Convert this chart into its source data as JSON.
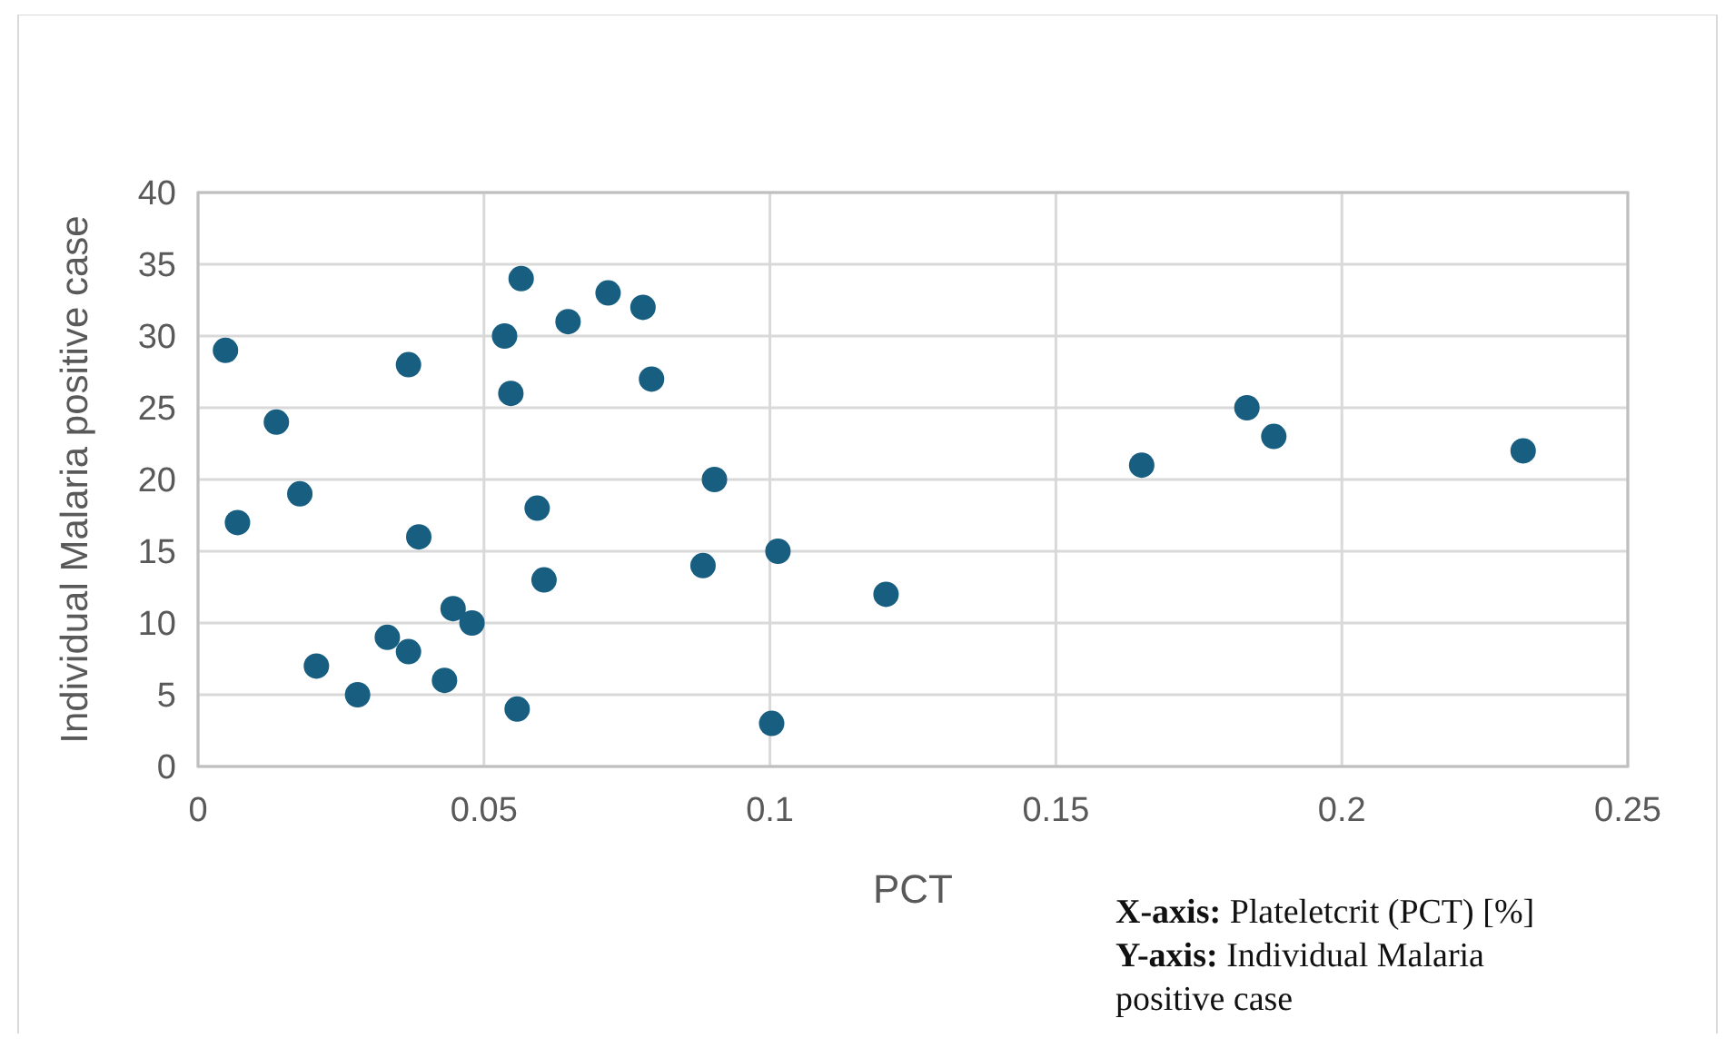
{
  "chart_data": {
    "type": "scatter",
    "xlabel": "PCT",
    "ylabel": "Individual Malaria positive case",
    "x": [
      0.0048,
      0.0069,
      0.0137,
      0.0178,
      0.0207,
      0.0279,
      0.0331,
      0.0368,
      0.0368,
      0.0386,
      0.0431,
      0.0446,
      0.0479,
      0.0536,
      0.0547,
      0.0558,
      0.0565,
      0.0593,
      0.0605,
      0.0647,
      0.0717,
      0.0778,
      0.0793,
      0.0903,
      0.0883,
      0.1014,
      0.1003,
      0.1203,
      0.165,
      0.1834,
      0.1881,
      0.2317
    ],
    "series": [
      {
        "color": "#175e80",
        "values": [
          29,
          17,
          24,
          19,
          7,
          5,
          9,
          28,
          8,
          16,
          6,
          11,
          10,
          30,
          26,
          4,
          34,
          18,
          13,
          31,
          33,
          32,
          27,
          20,
          14,
          15,
          3,
          12,
          21,
          25,
          23,
          22
        ]
      }
    ],
    "xlim": [
      0,
      0.25
    ],
    "xticks": [
      0,
      0.05,
      0.1,
      0.15,
      0.2,
      0.25
    ],
    "ylim": [
      0,
      40
    ],
    "yticks": [
      0,
      5,
      10,
      15,
      20,
      25,
      30,
      35,
      40
    ],
    "grid": true,
    "marker": "circle",
    "annotations": [
      "X-axis: Plateletcrit (PCT) [%]",
      "Y-axis: Individual Malaria positive case"
    ]
  }
}
